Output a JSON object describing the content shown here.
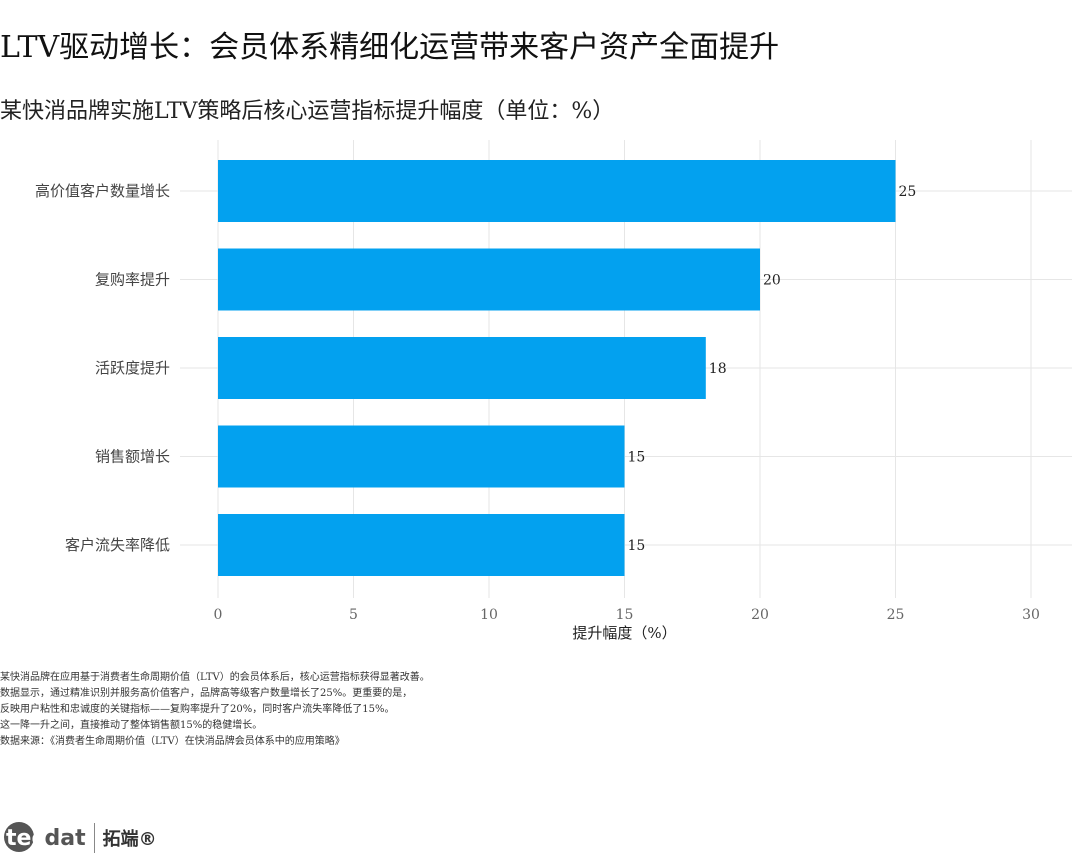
{
  "title": "LTV驱动增长：会员体系精细化运营带来客户资产全面提升",
  "subtitle": "某快消品牌实施LTV策略后核心运营指标提升幅度（单位：%）",
  "caption_lines": [
    "某快消品牌在应用基于消费者生命周期价值（LTV）的会员体系后，核心运营指标获得显著改善。",
    "数据显示，通过精准识别并服务高价值客户，品牌高等级客户数量增长了25%。更重要的是，",
    "反映用户粘性和忠诚度的关键指标——复购率提升了20%，同时客户流失率降低了15%。",
    "这一降一升之间，直接推动了整体销售额15%的稳健增长。",
    "数据来源：《消费者生命周期价值（LTV）在快消品牌会员体系中的应用策略》"
  ],
  "logo": {
    "mark_lead": "tec",
    "mark_rest": "dat",
    "name": "拓端®"
  },
  "colors": {
    "bar": "#03A1EF",
    "grid": "#E6E6E6"
  },
  "chart_data": {
    "type": "bar",
    "orientation": "horizontal",
    "categories": [
      "高价值客户数量增长",
      "复购率提升",
      "活跃度提升",
      "销售额增长",
      "客户流失率降低"
    ],
    "values": [
      25,
      20,
      18,
      15,
      15
    ],
    "xlabel": "提升幅度（%）",
    "ylabel": "",
    "xlim": [
      0,
      30
    ],
    "xticks": [
      0,
      5,
      10,
      15,
      20,
      25,
      30
    ],
    "grid": true
  }
}
